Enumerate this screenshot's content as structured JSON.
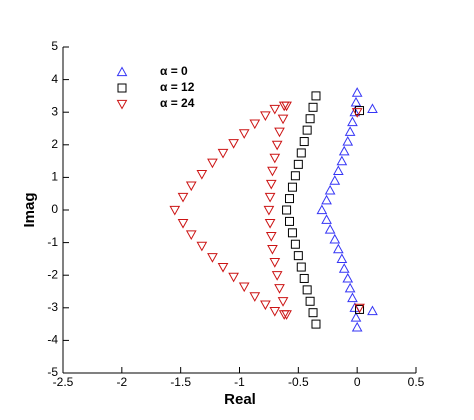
{
  "chart_data": {
    "type": "scatter",
    "xlabel": "Real",
    "ylabel": "Imag",
    "xlim": [
      -2.5,
      0.5
    ],
    "ylim": [
      -5,
      5
    ],
    "xticks": [
      -2.5,
      -2,
      -1.5,
      -1,
      -0.5,
      0,
      0.5
    ],
    "yticks": [
      -5,
      -4,
      -3,
      -2,
      -1,
      0,
      1,
      2,
      3,
      4,
      5
    ],
    "legend": "upper left",
    "series": [
      {
        "name": "α = 0",
        "color": "#3535f5",
        "marker": "triangle-up",
        "x": [
          0,
          -0.01,
          -0.02,
          -0.04,
          -0.06,
          -0.08,
          -0.11,
          -0.13,
          -0.16,
          -0.19,
          -0.23,
          -0.26,
          -0.3,
          -0.26,
          -0.23,
          -0.19,
          -0.16,
          -0.13,
          -0.11,
          -0.08,
          -0.06,
          -0.04,
          -0.02,
          -0.01,
          0,
          0.13,
          0.13
        ],
        "values": [
          3.6,
          3.3,
          3.0,
          2.7,
          2.4,
          2.1,
          1.8,
          1.5,
          1.2,
          0.9,
          0.6,
          0.3,
          0,
          -0.3,
          -0.6,
          -0.9,
          -1.2,
          -1.5,
          -1.8,
          -2.1,
          -2.4,
          -2.7,
          -3.0,
          -3.3,
          -3.6,
          3.1,
          -3.1
        ]
      },
      {
        "name": "α = 12",
        "color": "#000000",
        "marker": "square",
        "x": [
          -0.35,
          -0.375,
          -0.4,
          -0.425,
          -0.45,
          -0.475,
          -0.5,
          -0.525,
          -0.55,
          -0.575,
          -0.6,
          -0.575,
          -0.55,
          -0.525,
          -0.5,
          -0.475,
          -0.45,
          -0.425,
          -0.4,
          -0.375,
          -0.35,
          0.02,
          0.02
        ],
        "values": [
          3.5,
          3.15,
          2.8,
          2.45,
          2.1,
          1.75,
          1.4,
          1.05,
          0.7,
          0.35,
          0,
          -0.35,
          -0.7,
          -1.05,
          -1.4,
          -1.75,
          -2.1,
          -2.45,
          -2.8,
          -3.15,
          -3.5,
          3.05,
          -3.05
        ]
      },
      {
        "name": "α = 24",
        "color": "#cc1414",
        "marker": "triangle-down",
        "x": [
          -0.62,
          -0.7,
          -0.78,
          -0.87,
          -0.96,
          -1.05,
          -1.14,
          -1.23,
          -1.32,
          -1.41,
          -1.48,
          -1.55,
          -1.48,
          -1.41,
          -1.32,
          -1.23,
          -1.14,
          -1.05,
          -0.96,
          -0.87,
          -0.78,
          -0.7,
          -0.62,
          -0.6,
          -0.63,
          -0.66,
          -0.68,
          -0.7,
          -0.72,
          -0.73,
          -0.74,
          -0.75,
          -0.74,
          -0.73,
          -0.72,
          -0.7,
          -0.68,
          -0.66,
          -0.63,
          -0.6,
          0,
          0.02
        ],
        "values": [
          3.2,
          3.1,
          2.9,
          2.65,
          2.35,
          2.05,
          1.75,
          1.45,
          1.1,
          0.75,
          0.4,
          0,
          -0.4,
          -0.75,
          -1.1,
          -1.45,
          -1.75,
          -2.05,
          -2.35,
          -2.65,
          -2.9,
          -3.1,
          -3.2,
          3.2,
          2.8,
          2.4,
          2.0,
          1.6,
          1.2,
          0.8,
          0.4,
          0,
          -0.4,
          -0.8,
          -1.2,
          -1.6,
          -2.0,
          -2.4,
          -2.8,
          -3.2,
          3.0,
          -3.0
        ]
      }
    ]
  }
}
